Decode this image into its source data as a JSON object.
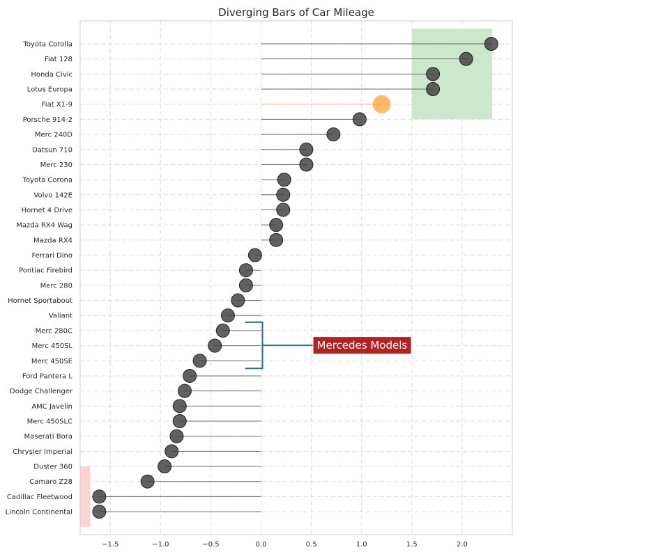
{
  "chart_data": {
    "type": "scatter",
    "title": "Diverging Bars of Car Mileage",
    "xlabel": "",
    "ylabel": "",
    "xlim": [
      -1.8,
      2.5
    ],
    "xticks": [
      -1.5,
      -1.0,
      -0.5,
      0.0,
      0.5,
      1.0,
      1.5,
      2.0
    ],
    "xtick_labels": [
      "−1.5",
      "−1.0",
      "−0.5",
      "0.0",
      "0.5",
      "1.0",
      "1.5",
      "2.0"
    ],
    "grid": true,
    "categories": [
      "Toyota Corolla",
      "Fiat 128",
      "Honda Civic",
      "Lotus Europa",
      "Fiat X1-9",
      "Porsche 914-2",
      "Merc 240D",
      "Datsun 710",
      "Merc 230",
      "Toyota Corona",
      "Volvo 142E",
      "Hornet 4 Drive",
      "Mazda RX4 Wag",
      "Mazda RX4",
      "Ferrari Dino",
      "Pontiac Firebird",
      "Merc 280",
      "Hornet Sportabout",
      "Valiant",
      "Merc 280C",
      "Merc 450SL",
      "Merc 450SE",
      "Ford Pantera L",
      "Dodge Challenger",
      "AMC Javelin",
      "Merc 450SLC",
      "Maserati Bora",
      "Chrysler Imperial",
      "Duster 360",
      "Camaro Z28",
      "Cadillac Fleetwood",
      "Lincoln Continental"
    ],
    "values": [
      2.29,
      2.04,
      1.71,
      1.71,
      1.2,
      0.98,
      0.72,
      0.45,
      0.45,
      0.23,
      0.22,
      0.22,
      0.15,
      0.15,
      -0.06,
      -0.15,
      -0.15,
      -0.23,
      -0.33,
      -0.38,
      -0.46,
      -0.61,
      -0.71,
      -0.76,
      -0.81,
      -0.81,
      -0.84,
      -0.89,
      -0.96,
      -1.13,
      -1.61,
      -1.61
    ],
    "highlight": {
      "category": "Fiat X1-9",
      "color": "#ffa436"
    },
    "point_color": "#3a3a3a",
    "line_color": "#555555",
    "regions": [
      {
        "name": "top-region",
        "x_range": [
          1.5,
          2.3
        ],
        "categories": [
          "Toyota Corolla",
          "Fiat X1-9"
        ],
        "color": "#a8d8a8"
      },
      {
        "name": "bottom-region",
        "x_range": [
          -1.8,
          -1.7
        ],
        "categories": [
          "Camaro Z28",
          "Lincoln Continental"
        ],
        "color": "#ffb3b3"
      }
    ],
    "annotation": {
      "text": "Mercedes Models",
      "bracket_categories": [
        "Merc 280C",
        "Merc 450SE"
      ],
      "bracket_x": 0.0,
      "box_color": "#b22222",
      "bracket_color": "#2b6ca3"
    }
  }
}
